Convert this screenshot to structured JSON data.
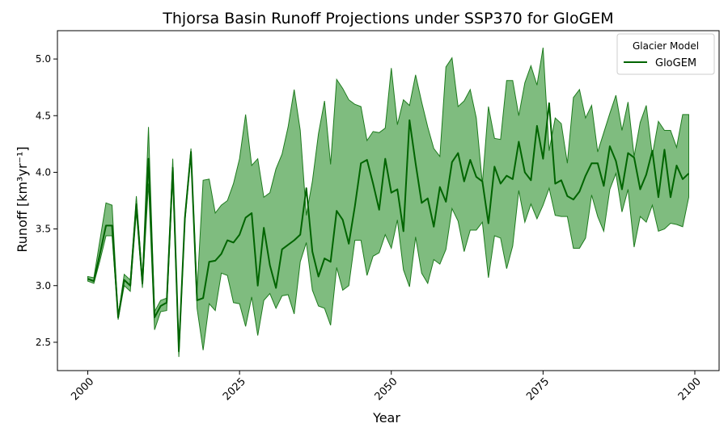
{
  "chart_data": {
    "type": "line",
    "title": "Thjorsa Basin Runoff Projections under SSP370 for GloGEM",
    "xlabel": "Year",
    "ylabel": "Runoff [km³yr⁻¹]",
    "xlim": [
      1995,
      2104
    ],
    "ylim": [
      2.25,
      5.25
    ],
    "xticks": [
      2000,
      2025,
      2050,
      2075,
      2100
    ],
    "yticks": [
      2.5,
      3.0,
      3.5,
      4.0,
      4.5,
      5.0
    ],
    "grid": false,
    "legend": {
      "title": "Glacier Model",
      "placement": "top-right"
    },
    "colors": {
      "line": "#006400",
      "band": "#228B22",
      "band_edge": "#1e7b1e"
    },
    "series": [
      {
        "name": "GloGEM",
        "x": [
          2000,
          2001,
          2002,
          2003,
          2004,
          2005,
          2006,
          2007,
          2008,
          2009,
          2010,
          2011,
          2012,
          2013,
          2014,
          2015,
          2016,
          2017,
          2018,
          2019,
          2020,
          2021,
          2022,
          2023,
          2024,
          2025,
          2026,
          2027,
          2028,
          2029,
          2030,
          2031,
          2032,
          2033,
          2034,
          2035,
          2036,
          2037,
          2038,
          2039,
          2040,
          2041,
          2042,
          2043,
          2044,
          2045,
          2046,
          2047,
          2048,
          2049,
          2050,
          2051,
          2052,
          2053,
          2054,
          2055,
          2056,
          2057,
          2058,
          2059,
          2060,
          2061,
          2062,
          2063,
          2064,
          2065,
          2066,
          2067,
          2068,
          2069,
          2070,
          2071,
          2072,
          2073,
          2074,
          2075,
          2076,
          2077,
          2078,
          2079,
          2080,
          2081,
          2082,
          2083,
          2084,
          2085,
          2086,
          2087,
          2088,
          2089,
          2090,
          2091,
          2092,
          2093,
          2094,
          2095,
          2096,
          2097,
          2098,
          2099
        ],
        "mean": [
          3.06,
          3.04,
          3.28,
          3.53,
          3.53,
          2.72,
          3.05,
          3.0,
          3.72,
          3.02,
          4.12,
          2.72,
          2.82,
          2.85,
          4.04,
          2.42,
          3.6,
          4.18,
          2.87,
          2.89,
          3.21,
          3.22,
          3.28,
          3.4,
          3.38,
          3.45,
          3.6,
          3.64,
          3.0,
          3.51,
          3.18,
          2.98,
          3.32,
          3.36,
          3.4,
          3.45,
          3.86,
          3.3,
          3.08,
          3.24,
          3.21,
          3.66,
          3.58,
          3.37,
          3.7,
          4.08,
          4.11,
          3.9,
          3.67,
          4.12,
          3.82,
          3.85,
          3.48,
          4.46,
          4.08,
          3.73,
          3.77,
          3.52,
          3.87,
          3.74,
          4.09,
          4.17,
          3.92,
          4.11,
          3.96,
          3.92,
          3.55,
          4.05,
          3.9,
          3.97,
          3.94,
          4.27,
          4.0,
          3.93,
          4.41,
          4.12,
          4.61,
          3.9,
          3.93,
          3.79,
          3.76,
          3.83,
          3.97,
          4.08,
          4.08,
          3.88,
          4.23,
          4.1,
          3.85,
          4.17,
          4.13,
          3.85,
          3.98,
          4.19,
          3.78,
          4.2,
          3.78,
          4.06,
          3.94,
          3.99
        ],
        "upper": [
          3.08,
          3.07,
          3.4,
          3.73,
          3.71,
          2.73,
          3.1,
          3.05,
          3.79,
          3.06,
          4.4,
          2.77,
          2.87,
          2.89,
          4.12,
          2.43,
          3.62,
          4.21,
          2.95,
          3.93,
          3.94,
          3.64,
          3.71,
          3.75,
          3.9,
          4.12,
          4.51,
          4.06,
          4.12,
          3.78,
          3.82,
          4.03,
          4.16,
          4.4,
          4.73,
          4.37,
          3.62,
          3.92,
          4.34,
          4.63,
          4.07,
          4.82,
          4.74,
          4.64,
          4.6,
          4.58,
          4.28,
          4.36,
          4.35,
          4.39,
          4.92,
          4.42,
          4.64,
          4.59,
          4.86,
          4.62,
          4.4,
          4.21,
          4.14,
          4.93,
          5.01,
          4.58,
          4.63,
          4.73,
          4.48,
          3.9,
          4.58,
          4.3,
          4.29,
          4.81,
          4.81,
          4.5,
          4.79,
          4.94,
          4.77,
          5.1,
          4.19,
          4.48,
          4.43,
          4.08,
          4.66,
          4.73,
          4.48,
          4.59,
          4.18,
          4.35,
          4.52,
          4.68,
          4.37,
          4.62,
          4.14,
          4.44,
          4.59,
          4.15,
          4.45,
          4.37,
          4.37,
          4.22,
          4.51,
          4.51
        ],
        "lower": [
          3.04,
          3.02,
          3.22,
          3.44,
          3.44,
          2.7,
          3.0,
          2.95,
          3.65,
          2.98,
          3.9,
          2.61,
          2.77,
          2.78,
          3.95,
          2.37,
          3.56,
          4.16,
          2.8,
          2.43,
          2.84,
          2.78,
          3.11,
          3.09,
          2.85,
          2.84,
          2.64,
          2.9,
          2.56,
          2.87,
          2.93,
          2.8,
          2.91,
          2.92,
          2.75,
          3.21,
          3.38,
          2.96,
          2.82,
          2.8,
          2.65,
          3.16,
          2.96,
          3.0,
          3.4,
          3.4,
          3.09,
          3.26,
          3.29,
          3.45,
          3.33,
          3.58,
          3.14,
          2.99,
          3.43,
          3.11,
          3.02,
          3.23,
          3.19,
          3.32,
          3.68,
          3.57,
          3.3,
          3.49,
          3.49,
          3.56,
          3.07,
          3.44,
          3.42,
          3.15,
          3.35,
          3.84,
          3.56,
          3.72,
          3.59,
          3.71,
          3.86,
          3.62,
          3.61,
          3.61,
          3.33,
          3.33,
          3.42,
          3.8,
          3.61,
          3.48,
          3.85,
          3.99,
          3.65,
          3.85,
          3.34,
          3.61,
          3.56,
          3.71,
          3.48,
          3.5,
          3.55,
          3.54,
          3.52,
          3.78
        ]
      }
    ]
  }
}
